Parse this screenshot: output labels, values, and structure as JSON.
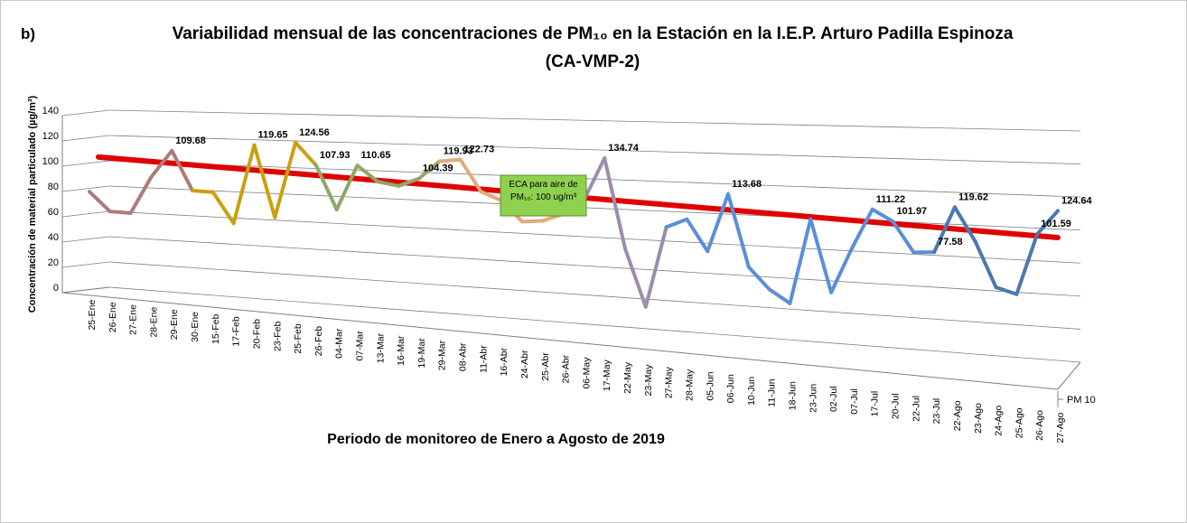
{
  "chart_data": {
    "type": "line3d",
    "panel_label": "b)",
    "title": "Variabilidad mensual de las concentraciones de PM₁₀ en la Estación en la I.E.P. Arturo Padilla Espinoza",
    "subtitle": "(CA-VMP-2)",
    "y_label": "Concentración de material particulado (µg/m³)",
    "x_label": "Periodo de monitoreo de Enero a Agosto de 2019",
    "categories": [
      "25-Ene",
      "26-Ene",
      "27-Ene",
      "28-Ene",
      "29-Ene",
      "30-Ene",
      "15-Feb",
      "17-Feb",
      "20-Feb",
      "23-Feb",
      "25-Feb",
      "26-Feb",
      "04-Mar",
      "07-Mar",
      "13-Mar",
      "16-Mar",
      "19-Mar",
      "29-Mar",
      "08-Abr",
      "11-Abr",
      "16-Abr",
      "24-Abr",
      "25-Abr",
      "26-Abr",
      "06-May",
      "17-May",
      "22-May",
      "23-May",
      "27-May",
      "28-May",
      "05-Jun",
      "06-Jun",
      "10-Jun",
      "11-Jun",
      "18-Jun",
      "23-Jun",
      "02-Jul",
      "07-Jul",
      "17-Jul",
      "20-Jul",
      "22-Jul",
      "23-Jul",
      "22-Ago",
      "23-Ago",
      "24-Ago",
      "25-Ago",
      "26-Ago",
      "27-Ago"
    ],
    "series": [
      {
        "name": "PM 10",
        "values": [
          73,
          59,
          59,
          88,
          109.68,
          80,
          80,
          57,
          119.65,
          64,
          124.56,
          107.93,
          74,
          110.65,
          99,
          97,
          104.39,
          119.93,
          122.73,
          98,
          92,
          76,
          78,
          85,
          98,
          134.74,
          60,
          12,
          81,
          89,
          63,
          113.68,
          52,
          34,
          23,
          98,
          35,
          75,
          111.22,
          101.97,
          76,
          77.58,
          119.62,
          90,
          50,
          45,
          101.59,
          124.64
        ],
        "value_labels": [
          null,
          null,
          null,
          null,
          "109.68",
          null,
          null,
          null,
          "119.65",
          null,
          "124.56",
          "107.93",
          null,
          "110.65",
          null,
          null,
          "104.39",
          "119.93",
          "122.73",
          null,
          null,
          null,
          null,
          null,
          null,
          "134.74",
          null,
          null,
          null,
          null,
          null,
          "113.68",
          null,
          null,
          null,
          null,
          null,
          null,
          "111.22",
          "101.97",
          null,
          "77.58",
          "119.62",
          null,
          null,
          null,
          "101.59",
          "124.64"
        ],
        "colors": [
          "#b07a78",
          "#b07a78",
          "#b07a78",
          "#b07a78",
          "#b07a78",
          "#b07a78",
          "#c9a012",
          "#c9a012",
          "#c9a012",
          "#c9a012",
          "#c9a012",
          "#c9a012",
          "#8fa868",
          "#8fa868",
          "#8fa868",
          "#8fa868",
          "#8fa868",
          "#8fa868",
          "#e3aa7a",
          "#e3aa7a",
          "#e3aa7a",
          "#e3aa7a",
          "#e3aa7a",
          "#e3aa7a",
          "#9c8db0",
          "#9c8db0",
          "#9c8db0",
          "#9c8db0",
          "#9c8db0",
          "#5b8fd6",
          "#5b8fd6",
          "#5b8fd6",
          "#5b8fd6",
          "#5b8fd6",
          "#5b8fd6",
          "#5b8fd6",
          "#5b8fd6",
          "#5b8fd6",
          "#5b8fd6",
          "#5b8fd6",
          "#5b8fd6",
          "#5b8fd6",
          "#4a78b0",
          "#4a78b0",
          "#4a78b0",
          "#4a78b0",
          "#4a78b0",
          "#4a78b0"
        ]
      }
    ],
    "reference_line": {
      "value": 100,
      "label": "ECA para aire de PM₁₀: 100 ug/m³",
      "color": "#e00000",
      "box_color": "#8fd14f"
    },
    "ylim": [
      0,
      140
    ],
    "yticks": [
      0,
      20,
      40,
      60,
      80,
      100,
      120,
      140
    ],
    "grid": true
  }
}
